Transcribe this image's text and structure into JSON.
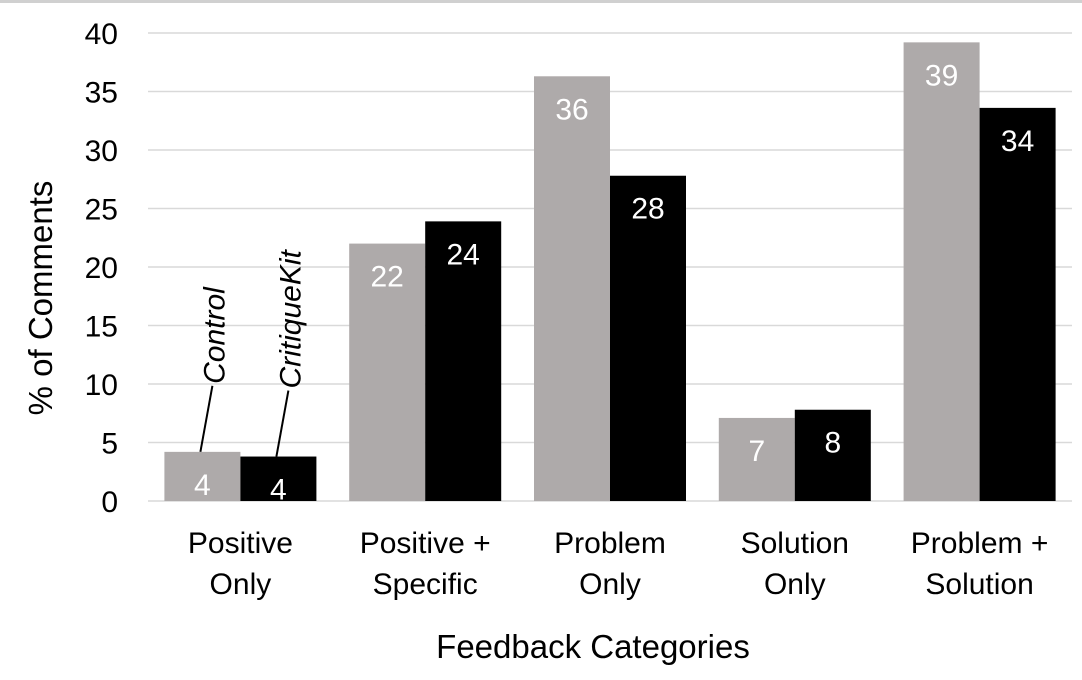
{
  "chart_data": {
    "type": "bar",
    "xlabel": "Feedback Categories",
    "ylabel": "% of Comments",
    "ylim": [
      0,
      40
    ],
    "yticks": [
      0,
      5,
      10,
      15,
      20,
      25,
      30,
      35,
      40
    ],
    "grid": true,
    "categories": [
      [
        "Positive",
        "Only"
      ],
      [
        "Positive +",
        "Specific"
      ],
      [
        "Problem",
        "Only"
      ],
      [
        "Solution",
        "Only"
      ],
      [
        "Problem +",
        "Solution"
      ]
    ],
    "series": [
      {
        "name": "Control",
        "color": "#aeaaaa",
        "label_color": "#ffffff",
        "values": [
          4.2,
          22,
          36.3,
          7.1,
          39.2
        ],
        "data_labels": [
          "4",
          "22",
          "36",
          "7",
          "39"
        ]
      },
      {
        "name": "CritiqueKit",
        "color": "#000000",
        "label_color": "#ffffff",
        "values": [
          3.8,
          23.9,
          27.8,
          7.8,
          33.6
        ],
        "data_labels": [
          "4",
          "24",
          "28",
          "8",
          "34"
        ]
      }
    ],
    "legend": "inline annotations on first category bars"
  }
}
